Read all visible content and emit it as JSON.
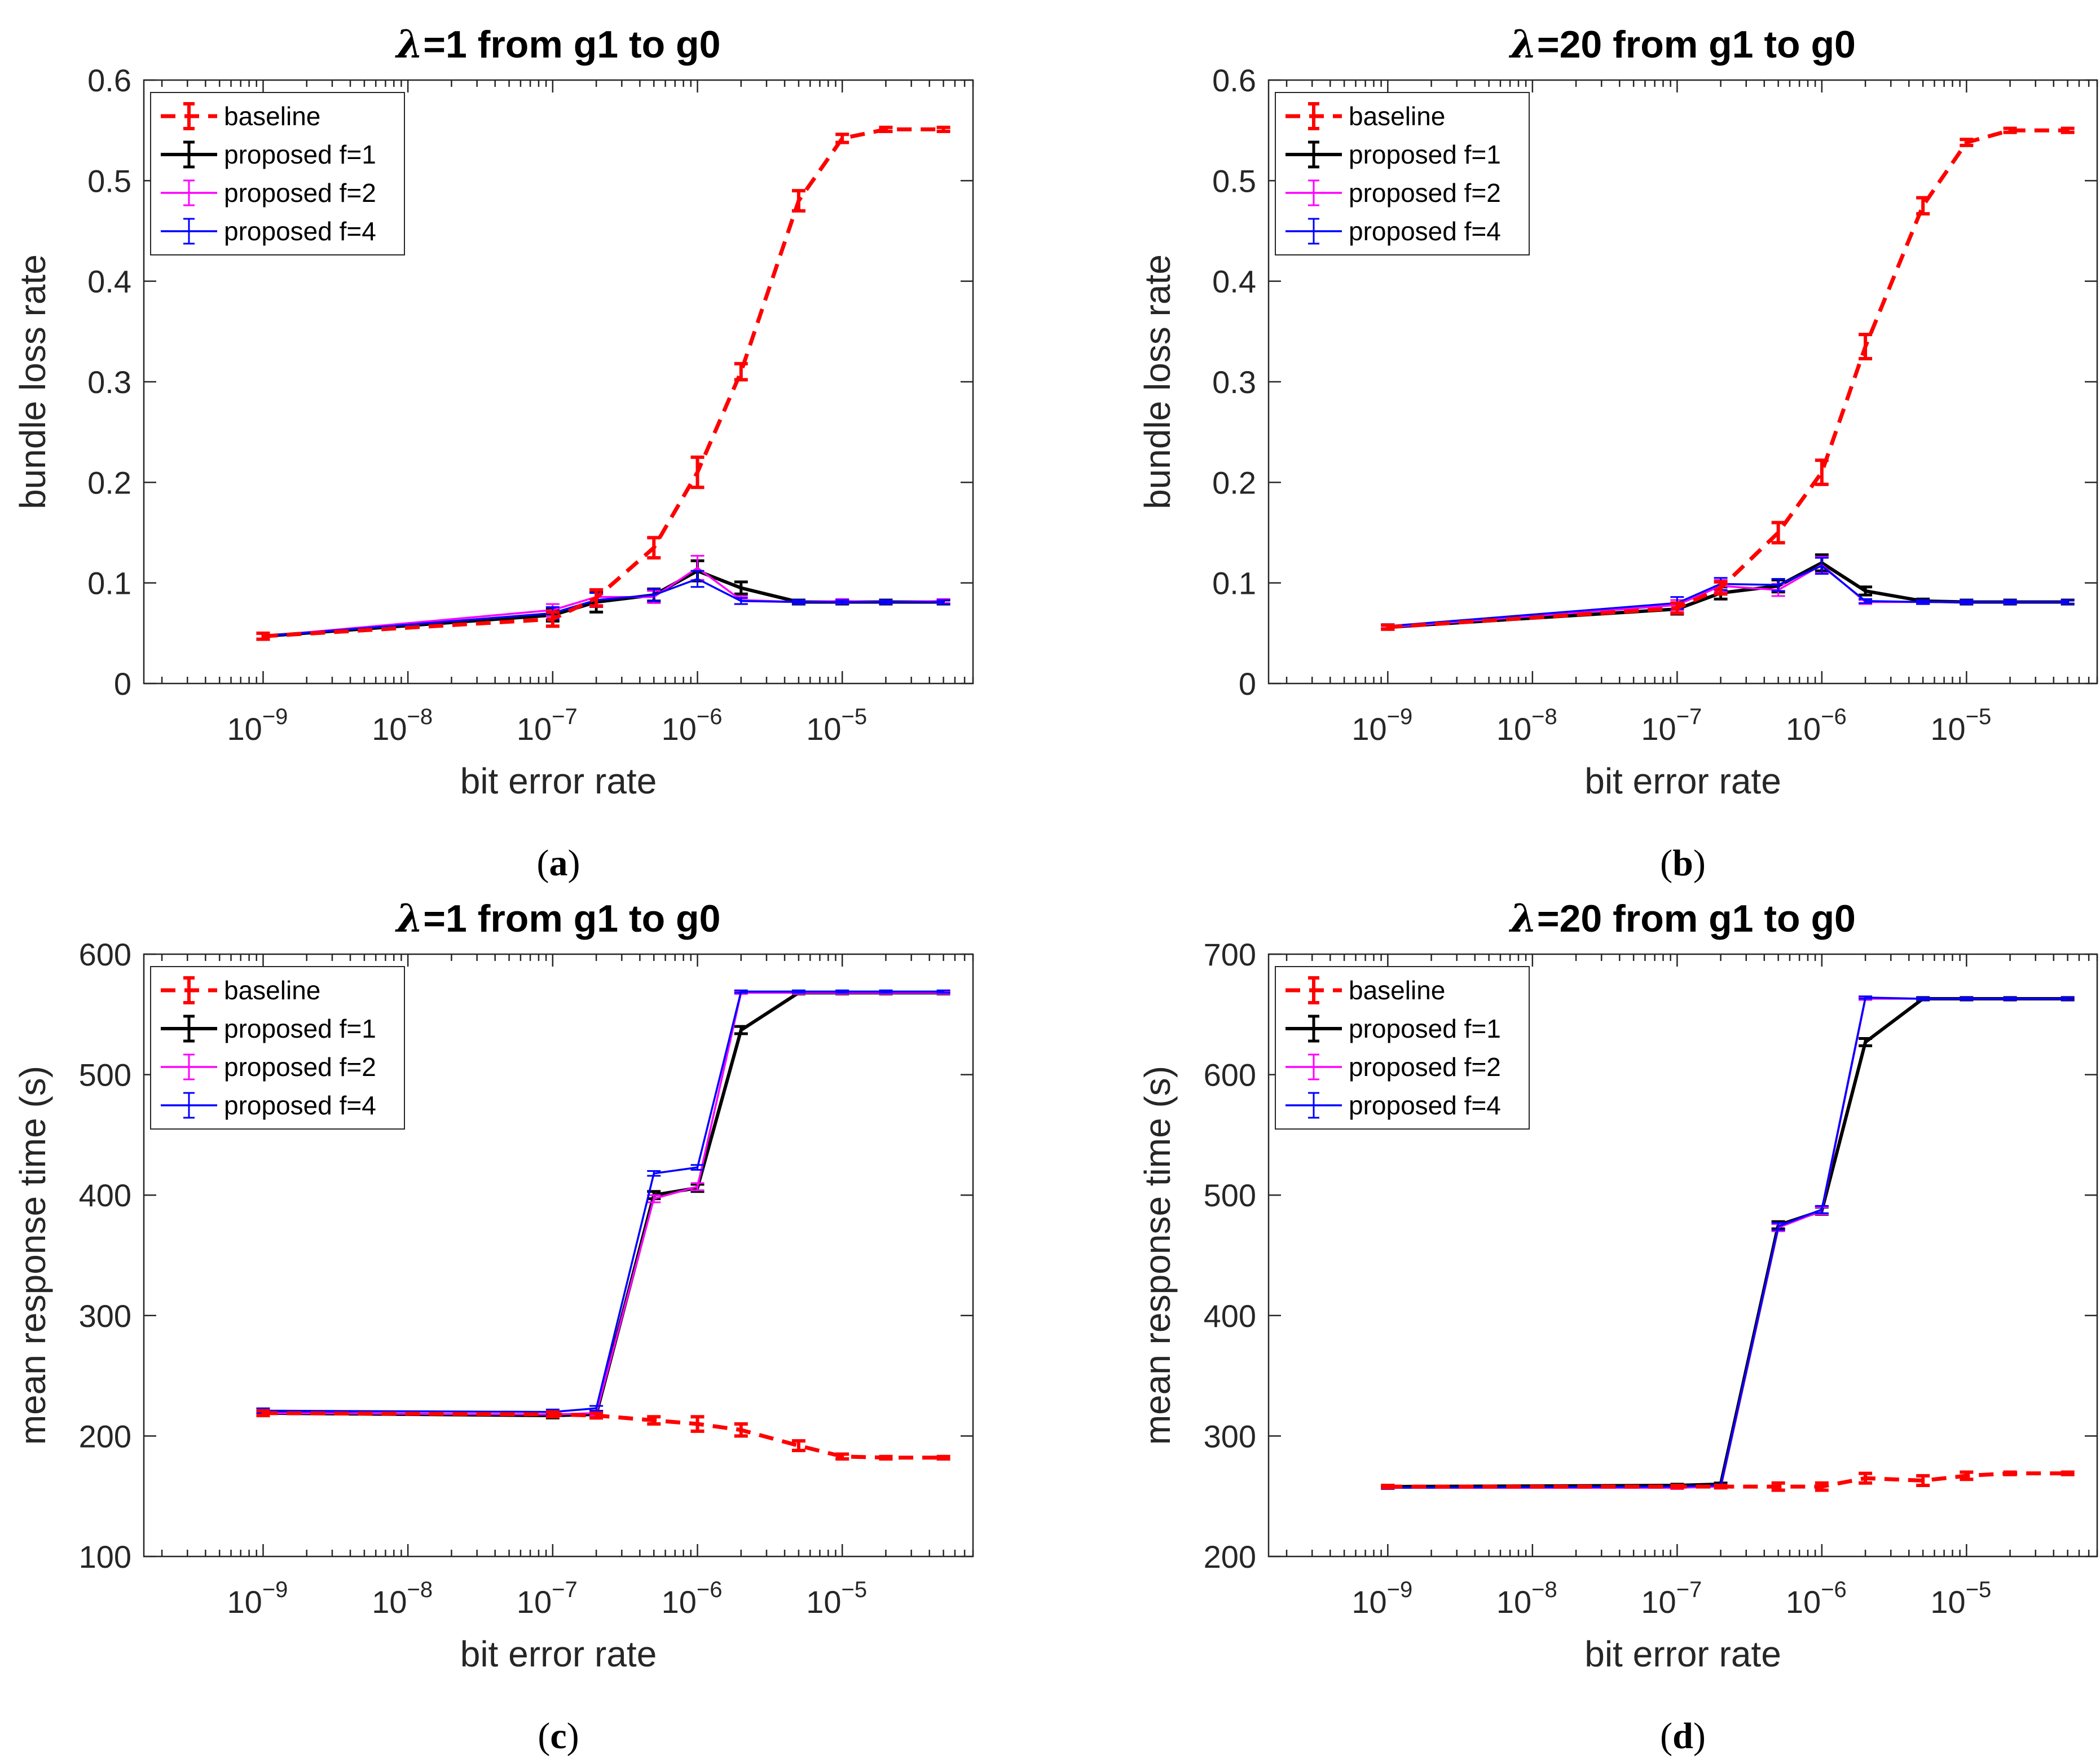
{
  "chart_data": [
    {
      "type": "line",
      "panel_label": "(a)",
      "title": "λ=1 from g1 to g0",
      "title_prefix": "λ",
      "title_rest": "=1 from g1 to g0",
      "xlabel": "bit error rate",
      "ylabel": "bundle loss rate",
      "xscale": "log",
      "xlim": [
        1.5e-10,
        8e-05
      ],
      "ylim": [
        0,
        0.6
      ],
      "yticks": [
        0,
        0.1,
        0.2,
        0.3,
        0.4,
        0.5,
        0.6
      ],
      "ytick_labels": [
        "0",
        "0.1",
        "0.2",
        "0.3",
        "0.4",
        "0.5",
        "0.6"
      ],
      "xtick_exponents": [
        -9,
        -8,
        -7,
        -6,
        -5
      ],
      "legend_position": "top-left",
      "x": [
        1e-09,
        1e-07,
        2e-07,
        5e-07,
        1e-06,
        2e-06,
        5e-06,
        1e-05,
        2e-05,
        5e-05
      ],
      "series": [
        {
          "name": "baseline",
          "color": "#ff0000",
          "dash": true,
          "values": [
            0.047,
            0.064,
            0.085,
            0.135,
            0.21,
            0.31,
            0.48,
            0.542,
            0.551,
            0.551
          ],
          "err": [
            0.003,
            0.007,
            0.008,
            0.01,
            0.015,
            0.008,
            0.01,
            0.004,
            0.002,
            0.002
          ]
        },
        {
          "name": "proposed f=1",
          "color": "#000000",
          "dash": false,
          "values": [
            0.047,
            0.068,
            0.081,
            0.088,
            0.112,
            0.095,
            0.081,
            0.081,
            0.081,
            0.081
          ],
          "err": [
            0.003,
            0.006,
            0.01,
            0.006,
            0.01,
            0.006,
            0.002,
            0.002,
            0.002,
            0.002
          ]
        },
        {
          "name": "proposed f=2",
          "color": "#ff00ff",
          "dash": false,
          "values": [
            0.047,
            0.073,
            0.086,
            0.086,
            0.115,
            0.083,
            0.081,
            0.082,
            0.081,
            0.082
          ],
          "err": [
            0.003,
            0.006,
            0.008,
            0.006,
            0.012,
            0.004,
            0.002,
            0.002,
            0.002,
            0.002
          ]
        },
        {
          "name": "proposed f=4",
          "color": "#0000ff",
          "dash": false,
          "values": [
            0.047,
            0.07,
            0.083,
            0.088,
            0.104,
            0.082,
            0.081,
            0.081,
            0.081,
            0.081
          ],
          "err": [
            0.003,
            0.006,
            0.007,
            0.006,
            0.008,
            0.003,
            0.002,
            0.002,
            0.002,
            0.002
          ]
        }
      ]
    },
    {
      "type": "line",
      "panel_label": "(b)",
      "title": "λ=20 from g1 to g0",
      "title_prefix": "λ",
      "title_rest": "=20 from g1 to g0",
      "xlabel": "bit error rate",
      "ylabel": "bundle loss rate",
      "xscale": "log",
      "xlim": [
        1.5e-10,
        8e-05
      ],
      "ylim": [
        0,
        0.6
      ],
      "yticks": [
        0,
        0.1,
        0.2,
        0.3,
        0.4,
        0.5,
        0.6
      ],
      "ytick_labels": [
        "0",
        "0.1",
        "0.2",
        "0.3",
        "0.4",
        "0.5",
        "0.6"
      ],
      "xtick_exponents": [
        -9,
        -8,
        -7,
        -6,
        -5
      ],
      "legend_position": "top-left",
      "x": [
        1e-09,
        1e-07,
        2e-07,
        5e-07,
        1e-06,
        2e-06,
        5e-06,
        1e-05,
        2e-05,
        5e-05
      ],
      "series": [
        {
          "name": "baseline",
          "color": "#ff0000",
          "dash": true,
          "values": [
            0.056,
            0.075,
            0.095,
            0.15,
            0.21,
            0.335,
            0.475,
            0.538,
            0.55,
            0.55
          ],
          "err": [
            0.002,
            0.005,
            0.006,
            0.01,
            0.012,
            0.012,
            0.008,
            0.003,
            0.002,
            0.002
          ]
        },
        {
          "name": "proposed f=1",
          "color": "#000000",
          "dash": false,
          "values": [
            0.056,
            0.074,
            0.09,
            0.097,
            0.12,
            0.092,
            0.082,
            0.081,
            0.081,
            0.081
          ],
          "err": [
            0.002,
            0.005,
            0.006,
            0.006,
            0.008,
            0.004,
            0.002,
            0.002,
            0.002,
            0.002
          ]
        },
        {
          "name": "proposed f=2",
          "color": "#ff00ff",
          "dash": false,
          "values": [
            0.056,
            0.078,
            0.097,
            0.093,
            0.118,
            0.081,
            0.081,
            0.081,
            0.081,
            0.081
          ],
          "err": [
            0.002,
            0.005,
            0.006,
            0.006,
            0.008,
            0.002,
            0.002,
            0.002,
            0.002,
            0.002
          ]
        },
        {
          "name": "proposed f=4",
          "color": "#0000ff",
          "dash": false,
          "values": [
            0.057,
            0.08,
            0.099,
            0.098,
            0.117,
            0.082,
            0.081,
            0.081,
            0.081,
            0.081
          ],
          "err": [
            0.002,
            0.006,
            0.006,
            0.006,
            0.008,
            0.002,
            0.002,
            0.002,
            0.002,
            0.002
          ]
        }
      ]
    },
    {
      "type": "line",
      "panel_label": "(c)",
      "title": "λ=1 from g1 to g0",
      "title_prefix": "λ",
      "title_rest": "=1 from g1 to g0",
      "xlabel": "bit error rate",
      "ylabel": "mean response time (s)",
      "xscale": "log",
      "xlim": [
        1.5e-10,
        8e-05
      ],
      "ylim": [
        100,
        600
      ],
      "yticks": [
        100,
        200,
        300,
        400,
        500,
        600
      ],
      "ytick_labels": [
        "100",
        "200",
        "300",
        "400",
        "500",
        "600"
      ],
      "xtick_exponents": [
        -9,
        -8,
        -7,
        -6,
        -5
      ],
      "legend_position": "top-left",
      "x": [
        1e-09,
        1e-07,
        2e-07,
        5e-07,
        1e-06,
        2e-06,
        5e-06,
        1e-05,
        2e-05,
        5e-05
      ],
      "series": [
        {
          "name": "baseline",
          "color": "#ff0000",
          "dash": true,
          "values": [
            219,
            218,
            217,
            213,
            210,
            205,
            192,
            183,
            182,
            182
          ],
          "err": [
            2,
            2,
            2,
            3,
            6,
            5,
            4,
            2,
            1,
            1
          ]
        },
        {
          "name": "proposed f=1",
          "color": "#000000",
          "dash": false,
          "values": [
            219,
            217,
            218,
            400,
            406,
            537,
            568,
            568,
            568,
            568
          ],
          "err": [
            2,
            2,
            2,
            3,
            3,
            3,
            1,
            1,
            1,
            1
          ]
        },
        {
          "name": "proposed f=2",
          "color": "#ff00ff",
          "dash": false,
          "values": [
            219,
            218,
            219,
            397,
            407,
            568,
            568,
            568,
            568,
            568
          ],
          "err": [
            2,
            2,
            2,
            3,
            3,
            1,
            1,
            1,
            1,
            1
          ]
        },
        {
          "name": "proposed f=4",
          "color": "#0000ff",
          "dash": false,
          "values": [
            221,
            220,
            223,
            418,
            423,
            569,
            569,
            569,
            569,
            569
          ],
          "err": [
            2,
            2,
            2,
            2,
            2,
            1,
            1,
            1,
            1,
            1
          ]
        }
      ]
    },
    {
      "type": "line",
      "panel_label": "(d)",
      "title": "λ=20 from g1 to g0",
      "title_prefix": "λ",
      "title_rest": "=20 from g1 to g0",
      "xlabel": "bit error rate",
      "ylabel": "mean response time (s)",
      "xscale": "log",
      "xlim": [
        1.5e-10,
        8e-05
      ],
      "ylim": [
        200,
        700
      ],
      "yticks": [
        200,
        300,
        400,
        500,
        600,
        700
      ],
      "ytick_labels": [
        "200",
        "300",
        "400",
        "500",
        "600",
        "700"
      ],
      "xtick_exponents": [
        -9,
        -8,
        -7,
        -6,
        -5
      ],
      "legend_position": "top-left",
      "x": [
        1e-09,
        1e-07,
        2e-07,
        5e-07,
        1e-06,
        2e-06,
        5e-06,
        1e-05,
        2e-05,
        5e-05
      ],
      "series": [
        {
          "name": "baseline",
          "color": "#ff0000",
          "dash": true,
          "values": [
            258,
            258,
            258,
            258,
            258,
            265,
            263,
            267,
            269,
            269
          ],
          "err": [
            1,
            1,
            1,
            3,
            3,
            4,
            4,
            3,
            1,
            1
          ]
        },
        {
          "name": "proposed f=1",
          "color": "#000000",
          "dash": false,
          "values": [
            258,
            259,
            260,
            475,
            487,
            627,
            663,
            663,
            663,
            663
          ],
          "err": [
            1,
            1,
            1,
            3,
            3,
            3,
            1,
            1,
            1,
            1
          ]
        },
        {
          "name": "proposed f=2",
          "color": "#ff00ff",
          "dash": false,
          "values": [
            257,
            257,
            258,
            473,
            487,
            663,
            663,
            663,
            663,
            663
          ],
          "err": [
            1,
            1,
            1,
            3,
            3,
            1,
            1,
            1,
            1,
            1
          ]
        },
        {
          "name": "proposed f=4",
          "color": "#0000ff",
          "dash": false,
          "values": [
            257,
            258,
            259,
            474,
            488,
            664,
            663,
            663,
            663,
            663
          ],
          "err": [
            1,
            1,
            1,
            3,
            3,
            1,
            1,
            1,
            1,
            1
          ]
        }
      ]
    }
  ]
}
